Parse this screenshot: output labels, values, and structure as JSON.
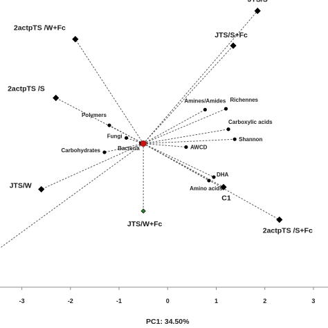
{
  "chart_data": {
    "type": "scatter",
    "subtype": "pca-biplot",
    "xlabel": "PC1: 34.50%",
    "xlim": [
      -3.45,
      3.3
    ],
    "ylim": [
      -3.0,
      3.6
    ],
    "x_ticks": [
      -3,
      -2,
      -1,
      0,
      1,
      2,
      3
    ],
    "x_tick_labels": [
      "-3",
      "-2",
      "-1",
      "0",
      "1",
      "2",
      "3"
    ],
    "grid": false,
    "legend": "none",
    "origin": {
      "x": -0.5,
      "y": 0.3
    },
    "colors": {
      "treatment": "#000000",
      "variable": "#000000",
      "origin": "#cc1111",
      "highlight": "#2e7d32",
      "axis": "#8c8c8c",
      "vector": "#555555"
    },
    "treatments": [
      {
        "label": "JTS/S",
        "x": 1.85,
        "y": 3.35,
        "color": "#000000"
      },
      {
        "label": "2actpTS /W+Fc",
        "x": -1.9,
        "y": 2.7,
        "color": "#000000"
      },
      {
        "label": "JTS/S+Fc",
        "x": 1.35,
        "y": 2.55,
        "color": "#000000"
      },
      {
        "label": "2actpTS /S",
        "x": -2.3,
        "y": 1.35,
        "color": "#000000"
      },
      {
        "label": "JTS/W",
        "x": -2.6,
        "y": -0.75,
        "color": "#000000"
      },
      {
        "label": "C1",
        "x": 1.15,
        "y": -0.7,
        "color": "#000000"
      },
      {
        "label": "JTS/W+Fc",
        "x": -0.5,
        "y": -1.25,
        "color": "#2e7d32"
      },
      {
        "label": "2actpTS /S+Fc",
        "x": 2.3,
        "y": -1.45,
        "color": "#000000"
      }
    ],
    "variables": [
      {
        "label": "Amines/Amides",
        "x": 0.77,
        "y": 1.08
      },
      {
        "label": "Richennes",
        "x": 1.2,
        "y": 1.1
      },
      {
        "label": "Polymers",
        "x": -1.2,
        "y": 0.72
      },
      {
        "label": "Carboxylic acids",
        "x": 1.25,
        "y": 0.63
      },
      {
        "label": "Shannon",
        "x": 1.38,
        "y": 0.4
      },
      {
        "label": "Fungi",
        "x": -0.85,
        "y": 0.43
      },
      {
        "label": "Bacteria",
        "x": -0.55,
        "y": 0.31
      },
      {
        "label": "AWCD",
        "x": 0.38,
        "y": 0.22
      },
      {
        "label": "Carbohydrates",
        "x": -1.3,
        "y": 0.1
      },
      {
        "label": "DHA",
        "x": 0.95,
        "y": -0.47
      },
      {
        "label": "Amino acids",
        "x": 0.85,
        "y": -0.55
      }
    ],
    "extra_vector_end": {
      "x": -3.45,
      "y": -2.1
    }
  }
}
